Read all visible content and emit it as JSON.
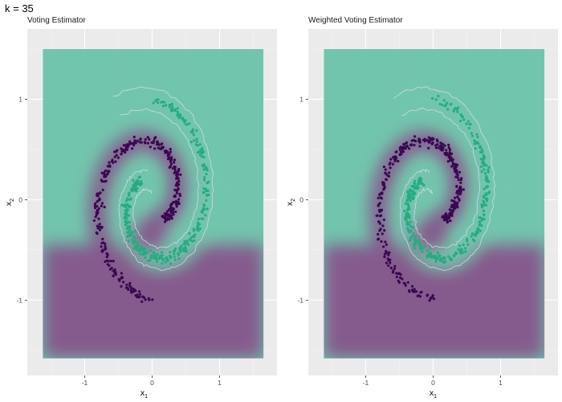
{
  "title": "k = 35",
  "chart_data": [
    {
      "type": "scatter",
      "subtitle": "Voting Estimator",
      "xlabel": "x",
      "xlabel_sub": "1",
      "ylabel": "x",
      "ylabel_sub": "2",
      "xlim": [
        -1.85,
        1.85
      ],
      "ylim": [
        -1.75,
        1.7
      ],
      "xticks": [
        -1,
        0,
        1
      ],
      "xtick_labels": [
        "-1",
        "0",
        "1"
      ],
      "yticks": [
        -1,
        0,
        1
      ],
      "ytick_labels": [
        "-1",
        "0",
        "1"
      ],
      "grid": true,
      "legend": "none",
      "series": [
        {
          "color": "#3b0752",
          "description_values": "dark spiral arm"
        },
        {
          "color": "#27ab82",
          "description_values": "green spiral arm"
        }
      ],
      "background_regions": {
        "class_a_color": "#72c5ad",
        "class_b_color": "#855a8d"
      }
    },
    {
      "type": "scatter",
      "subtitle": "Weighted Voting Estimator",
      "xlabel": "x",
      "xlabel_sub": "1",
      "ylabel": "x",
      "ylabel_sub": "2",
      "xlim": [
        -1.85,
        1.85
      ],
      "ylim": [
        -1.75,
        1.7
      ],
      "xticks": [
        -1,
        0,
        1
      ],
      "xtick_labels": [
        "-1",
        "0",
        "1"
      ],
      "yticks": [
        -1,
        0,
        1
      ],
      "ytick_labels": [
        "-1",
        "0",
        "1"
      ],
      "grid": true,
      "legend": "none",
      "series": [
        {
          "color": "#3b0752",
          "description_values": "dark spiral arm"
        },
        {
          "color": "#27ab82",
          "description_values": "green spiral arm"
        }
      ],
      "background_regions": {
        "class_a_color": "#72c5ad",
        "class_b_color": "#855a8d"
      }
    }
  ]
}
